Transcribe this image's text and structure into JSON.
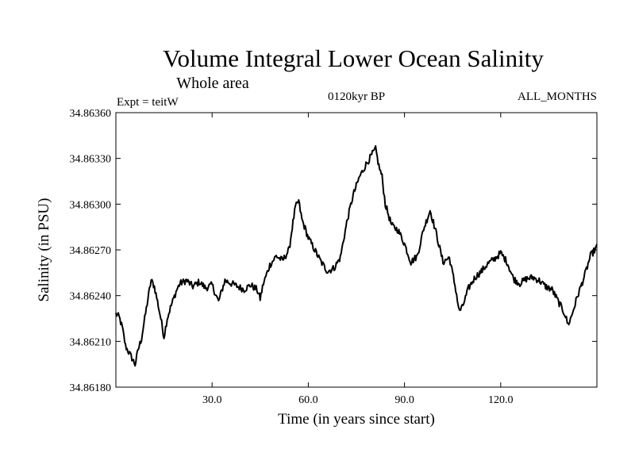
{
  "chart_data": {
    "type": "line",
    "title": "Volume Integral Lower Ocean Salinity",
    "subtitle": "Whole area",
    "experiment": "Expt = teitW",
    "period": "0120kyr BP",
    "months": "ALL_MONTHS",
    "xlabel": "Time (in years since start)",
    "ylabel": "Salinity (in PSU)",
    "xlim": [
      0,
      150
    ],
    "ylim": [
      34.8618,
      34.8636
    ],
    "x_ticks": [
      30,
      60,
      90,
      120
    ],
    "x_tick_labels": [
      "30.0",
      "60.0",
      "90.0",
      "120.0"
    ],
    "y_ticks": [
      34.8618,
      34.8621,
      34.8624,
      34.8627,
      34.863,
      34.8633,
      34.8636
    ],
    "y_tick_labels": [
      "34.86180",
      "34.86210",
      "34.86240",
      "34.86270",
      "34.86300",
      "34.86330",
      "34.86360"
    ],
    "series": [
      {
        "name": "salinity",
        "color": "#000000",
        "x": [
          0,
          1,
          2,
          3,
          4,
          5,
          6,
          7,
          8,
          9,
          10,
          11,
          12,
          13,
          14,
          15,
          16,
          17,
          18,
          19,
          20,
          22,
          24,
          26,
          28,
          30,
          32,
          34,
          36,
          38,
          40,
          42,
          44,
          45,
          46,
          48,
          50,
          52,
          54,
          55,
          56,
          57,
          58,
          60,
          62,
          64,
          66,
          68,
          70,
          72,
          74,
          76,
          78,
          80,
          81,
          82,
          83,
          84,
          86,
          88,
          90,
          92,
          94,
          96,
          98,
          100,
          102,
          104,
          106,
          107,
          108,
          110,
          112,
          114,
          116,
          118,
          120,
          122,
          124,
          126,
          128,
          130,
          132,
          134,
          136,
          138,
          140,
          141,
          142,
          144,
          146,
          148,
          150
        ],
        "values": [
          34.86228,
          34.86226,
          34.86219,
          34.86207,
          34.86203,
          34.86199,
          34.86195,
          34.86205,
          34.86212,
          34.86225,
          34.86238,
          34.8625,
          34.86246,
          34.86236,
          34.86225,
          34.86213,
          34.86225,
          34.86232,
          34.86238,
          34.86244,
          34.86248,
          34.8625,
          34.86246,
          34.86249,
          34.86245,
          34.86247,
          34.86236,
          34.8625,
          34.86248,
          34.86246,
          34.86244,
          34.86247,
          34.86244,
          34.86238,
          34.86248,
          34.8626,
          34.86266,
          34.86263,
          34.8627,
          34.86285,
          34.86298,
          34.86302,
          34.8629,
          34.86278,
          34.8627,
          34.86262,
          34.86256,
          34.86258,
          34.86265,
          34.86288,
          34.86306,
          34.86318,
          34.86326,
          34.86333,
          34.86336,
          34.86325,
          34.86318,
          34.863,
          34.86286,
          34.86283,
          34.86274,
          34.86262,
          34.86266,
          34.86284,
          34.86296,
          34.8628,
          34.86262,
          34.86265,
          34.86244,
          34.8623,
          34.86232,
          34.86245,
          34.86252,
          34.86256,
          34.86261,
          34.86264,
          34.86268,
          34.86262,
          34.86251,
          34.86248,
          34.86251,
          34.86252,
          34.8625,
          34.86246,
          34.86244,
          34.86236,
          34.86228,
          34.86221,
          34.86226,
          34.8624,
          34.86252,
          34.86266,
          34.86272
        ]
      }
    ]
  }
}
